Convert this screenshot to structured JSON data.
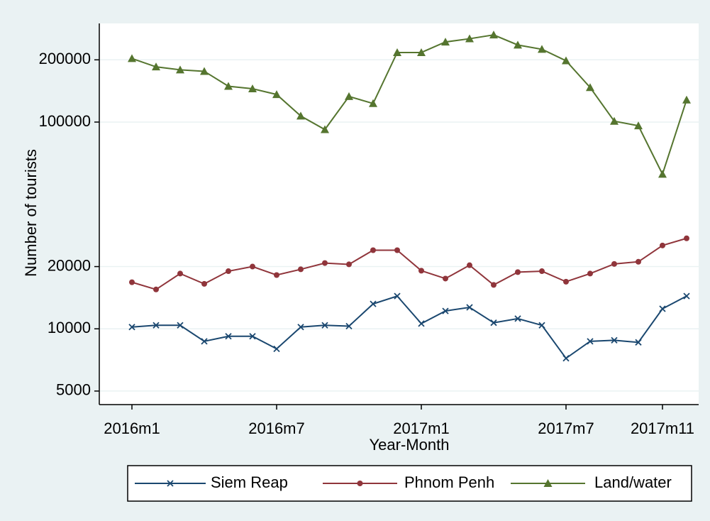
{
  "chart_data": {
    "type": "line",
    "y_label": "Number of tourists",
    "x_label": "Year-Month",
    "categories": [
      "2016m1",
      null,
      null,
      null,
      null,
      null,
      "2016m7",
      null,
      null,
      null,
      null,
      null,
      "2017m1",
      null,
      null,
      null,
      null,
      null,
      "2017m7",
      null,
      null,
      null,
      "2017m11",
      null
    ],
    "log_scale": true,
    "grid": true,
    "legend_position": "bottom",
    "ylim": [
      4300,
      300000
    ],
    "yticks": [
      5000,
      10000,
      20000,
      100000,
      200000
    ],
    "series": [
      {
        "name": "Siem Reap",
        "color": "#1a476f",
        "values": [
          10200,
          10400,
          10400,
          8700,
          9200,
          9200,
          8000,
          10200,
          10400,
          10300,
          13200,
          14400,
          10600,
          12200,
          12700,
          10700,
          11200,
          10400,
          7200,
          8700,
          8800,
          8600,
          12500,
          14400
        ]
      },
      {
        "name": "Phnom Penh",
        "color": "#90353b",
        "values": [
          16800,
          15500,
          18500,
          16500,
          19000,
          20000,
          18200,
          19400,
          20800,
          20500,
          24000,
          24000,
          19100,
          17500,
          20300,
          16300,
          18800,
          19000,
          16900,
          18500,
          20600,
          21100,
          25300,
          27400
        ]
      },
      {
        "name": "Land/water",
        "color": "#55752f",
        "values": [
          203000,
          185000,
          179000,
          176000,
          149000,
          145000,
          136000,
          107000,
          92000,
          133000,
          123000,
          217000,
          217000,
          244000,
          253000,
          264000,
          236000,
          225000,
          198000,
          147000,
          101000,
          96000,
          56000,
          128000
        ]
      }
    ]
  }
}
